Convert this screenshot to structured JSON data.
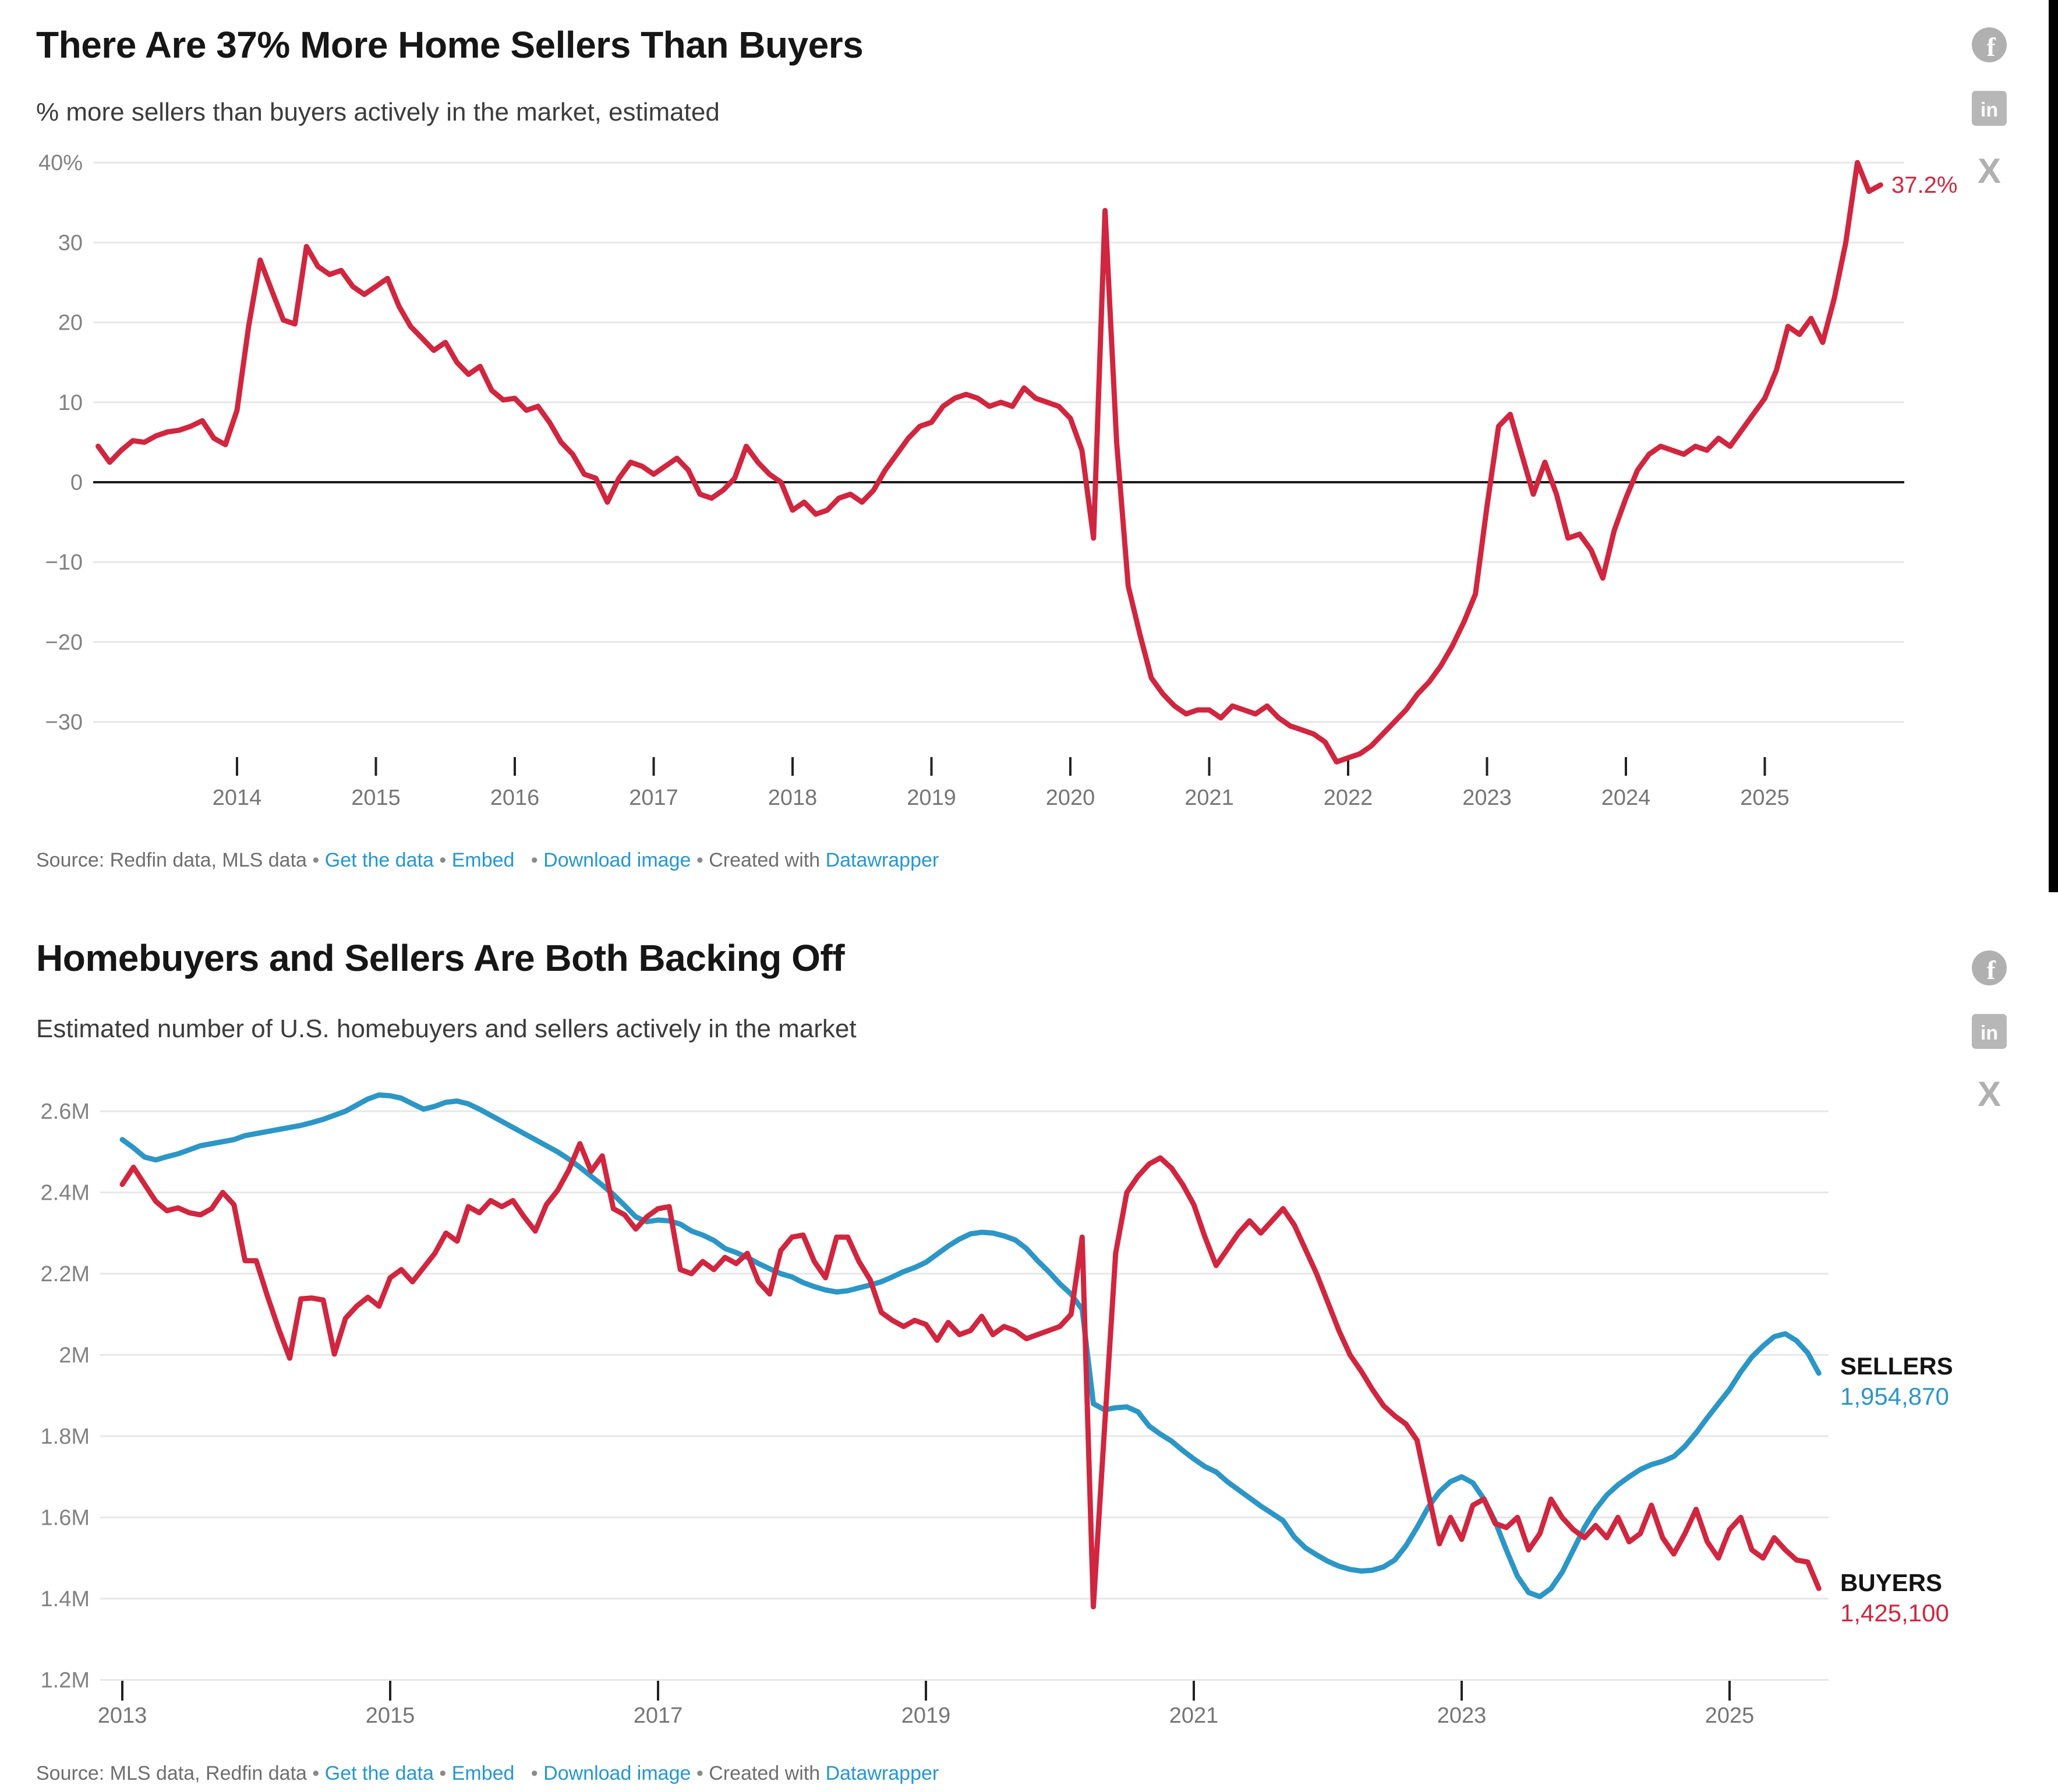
{
  "colors": {
    "pct_line": "#d0263f",
    "sellers_line": "#2c96c6",
    "buyers_line": "#d0263f",
    "link_blue": "#2596d1",
    "grid": "#e7e7e7",
    "zero_line": "#1a1a1a",
    "icon_gray": "#b0b0b0"
  },
  "social_icons": [
    "facebook-icon",
    "linkedin-icon",
    "x-icon"
  ],
  "charts": [
    {
      "title": "There Are 37% More Home Sellers Than Buyers",
      "subtitle": "% more sellers than buyers actively in the market, estimated",
      "footer": {
        "source": "Source: Redfin data, MLS data",
        "links": [
          "Get the data",
          "Embed",
          "Download image"
        ],
        "created": "Created with",
        "brand": "Datawrapper",
        "separator": "•"
      },
      "chart_data": {
        "type": "line",
        "x_start": "2013-01",
        "x_step_months": 1,
        "x_ticks": [
          2014,
          2015,
          2016,
          2017,
          2018,
          2019,
          2020,
          2021,
          2022,
          2023,
          2024,
          2025
        ],
        "y_ticks": [
          "40%",
          "30",
          "20",
          "10",
          "0",
          "−10",
          "−20",
          "−30"
        ],
        "y_tick_values": [
          40,
          30,
          20,
          10,
          0,
          -10,
          -20,
          -30
        ],
        "ylim": [
          -37,
          41
        ],
        "zero_baseline": true,
        "grid": true,
        "end_label": "37.2%",
        "series": [
          {
            "name": "pct-more-sellers-than-buyers",
            "color": "#d0263f",
            "values": [
              4.5,
              2.5,
              4,
              5.2,
              5,
              5.8,
              6.3,
              6.5,
              7,
              7.7,
              5.5,
              4.7,
              9,
              19.5,
              27.8,
              24,
              20.3,
              19.8,
              29.5,
              27,
              26,
              26.5,
              24.5,
              23.5,
              24.5,
              25.5,
              22,
              19.5,
              18,
              16.5,
              17.5,
              15,
              13.5,
              14.5,
              11.5,
              10.3,
              10.5,
              9,
              9.5,
              7.5,
              5,
              3.5,
              1,
              0.5,
              -2.5,
              0.5,
              2.5,
              2,
              1,
              2,
              3,
              1.5,
              -1.5,
              -2,
              -1,
              0.5,
              4.5,
              2.5,
              1,
              0,
              -3.5,
              -2.5,
              -4,
              -3.5,
              -2,
              -1.5,
              -2.5,
              -1,
              1.5,
              3.5,
              5.5,
              7,
              7.5,
              9.5,
              10.5,
              11,
              10.5,
              9.5,
              10,
              9.5,
              11.8,
              10.5,
              10,
              9.5,
              8,
              4,
              -7,
              34,
              5,
              -13,
              -19,
              -24.5,
              -26.5,
              -28,
              -29,
              -28.5,
              -28.5,
              -29.5,
              -28,
              -28.5,
              -29,
              -28,
              -29.5,
              -30.5,
              -31,
              -31.5,
              -32.5,
              -35,
              -34.5,
              -34,
              -33,
              -31.5,
              -30,
              -28.5,
              -26.5,
              -25,
              -23,
              -20.5,
              -17.5,
              -14,
              -3,
              7,
              8.5,
              3.5,
              -1.5,
              2.5,
              -1.5,
              -7,
              -6.5,
              -8.5,
              -12,
              -6,
              -2,
              1.5,
              3.5,
              4.5,
              4,
              3.5,
              4.5,
              4,
              5.5,
              4.5,
              6.5,
              8.5,
              10.5,
              14,
              19.5,
              18.5,
              20.5,
              17.5,
              23,
              30,
              40,
              36.4,
              37.2
            ]
          }
        ]
      }
    },
    {
      "title": "Homebuyers and Sellers Are Both Backing Off",
      "subtitle": "Estimated number of U.S. homebuyers and sellers actively in the market",
      "footer": {
        "source": "Source: MLS data, Redfin data",
        "links": [
          "Get the data",
          "Embed",
          "Download image"
        ],
        "created": "Created with",
        "brand": "Datawrapper",
        "separator": "•"
      },
      "chart_data": {
        "type": "line",
        "x_start": "2013-01",
        "x_step_months": 1,
        "x_ticks": [
          2013,
          2015,
          2017,
          2019,
          2021,
          2023,
          2025
        ],
        "y_ticks": [
          "2.6M",
          "2.4M",
          "2.2M",
          "2M",
          "1.8M",
          "1.6M",
          "1.4M",
          "1.2M"
        ],
        "y_tick_values": [
          2.6,
          2.4,
          2.2,
          2.0,
          1.8,
          1.6,
          1.4,
          1.2
        ],
        "ylim": [
          1.2,
          2.7
        ],
        "grid": true,
        "series": [
          {
            "name": "SELLERS",
            "color": "#2c96c6",
            "end_label": "SELLERS",
            "end_value": "1,954,870",
            "values": [
              2.53,
              2.51,
              2.487,
              2.48,
              2.488,
              2.495,
              2.505,
              2.515,
              2.52,
              2.525,
              2.53,
              2.54,
              2.545,
              2.55,
              2.555,
              2.56,
              2.565,
              2.572,
              2.58,
              2.59,
              2.6,
              2.615,
              2.63,
              2.64,
              2.638,
              2.632,
              2.618,
              2.605,
              2.612,
              2.622,
              2.625,
              2.618,
              2.605,
              2.59,
              2.575,
              2.56,
              2.545,
              2.53,
              2.515,
              2.5,
              2.482,
              2.462,
              2.44,
              2.418,
              2.395,
              2.368,
              2.34,
              2.328,
              2.332,
              2.33,
              2.322,
              2.305,
              2.295,
              2.282,
              2.262,
              2.252,
              2.24,
              2.225,
              2.212,
              2.2,
              2.192,
              2.178,
              2.168,
              2.16,
              2.155,
              2.158,
              2.165,
              2.172,
              2.18,
              2.192,
              2.205,
              2.215,
              2.228,
              2.248,
              2.268,
              2.285,
              2.298,
              2.302,
              2.3,
              2.293,
              2.283,
              2.262,
              2.232,
              2.205,
              2.175,
              2.15,
              2.112,
              1.88,
              1.865,
              1.87,
              1.872,
              1.86,
              1.825,
              1.805,
              1.788,
              1.765,
              1.744,
              1.725,
              1.712,
              1.688,
              1.668,
              1.648,
              1.628,
              1.61,
              1.592,
              1.552,
              1.525,
              1.508,
              1.492,
              1.48,
              1.472,
              1.468,
              1.47,
              1.478,
              1.495,
              1.53,
              1.575,
              1.625,
              1.663,
              1.688,
              1.7,
              1.685,
              1.645,
              1.59,
              1.52,
              1.455,
              1.415,
              1.405,
              1.425,
              1.465,
              1.52,
              1.575,
              1.62,
              1.655,
              1.68,
              1.7,
              1.718,
              1.73,
              1.738,
              1.75,
              1.775,
              1.808,
              1.845,
              1.88,
              1.915,
              1.958,
              1.995,
              2.022,
              2.045,
              2.052,
              2.035,
              2.005,
              1.955
            ]
          },
          {
            "name": "BUYERS",
            "color": "#d0263f",
            "end_label": "BUYERS",
            "end_value": "1,425,100",
            "values": [
              2.42,
              2.462,
              2.42,
              2.378,
              2.355,
              2.362,
              2.35,
              2.345,
              2.36,
              2.4,
              2.37,
              2.232,
              2.232,
              2.145,
              2.065,
              1.992,
              2.138,
              2.14,
              2.135,
              2.002,
              2.09,
              2.12,
              2.142,
              2.12,
              2.19,
              2.21,
              2.18,
              2.215,
              2.25,
              2.3,
              2.28,
              2.365,
              2.35,
              2.38,
              2.365,
              2.38,
              2.34,
              2.305,
              2.37,
              2.405,
              2.455,
              2.52,
              2.452,
              2.49,
              2.36,
              2.345,
              2.31,
              2.34,
              2.36,
              2.365,
              2.21,
              2.2,
              2.23,
              2.21,
              2.24,
              2.225,
              2.25,
              2.18,
              2.15,
              2.257,
              2.29,
              2.295,
              2.23,
              2.19,
              2.29,
              2.29,
              2.23,
              2.185,
              2.105,
              2.085,
              2.07,
              2.085,
              2.075,
              2.036,
              2.08,
              2.05,
              2.06,
              2.095,
              2.05,
              2.07,
              2.06,
              2.04,
              2.05,
              2.06,
              2.07,
              2.1,
              2.29,
              1.38,
              1.82,
              2.25,
              2.4,
              2.44,
              2.47,
              2.485,
              2.46,
              2.42,
              2.37,
              2.29,
              2.22,
              2.26,
              2.3,
              2.33,
              2.3,
              2.33,
              2.36,
              2.32,
              2.26,
              2.2,
              2.13,
              2.06,
              2,
              1.96,
              1.915,
              1.875,
              1.85,
              1.83,
              1.79,
              1.66,
              1.535,
              1.6,
              1.546,
              1.63,
              1.645,
              1.585,
              1.575,
              1.6,
              1.52,
              1.56,
              1.645,
              1.6,
              1.57,
              1.55,
              1.58,
              1.55,
              1.6,
              1.54,
              1.56,
              1.63,
              1.55,
              1.51,
              1.56,
              1.62,
              1.54,
              1.5,
              1.57,
              1.6,
              1.52,
              1.5,
              1.55,
              1.52,
              1.495,
              1.49,
              1.4251
            ]
          }
        ]
      }
    }
  ]
}
